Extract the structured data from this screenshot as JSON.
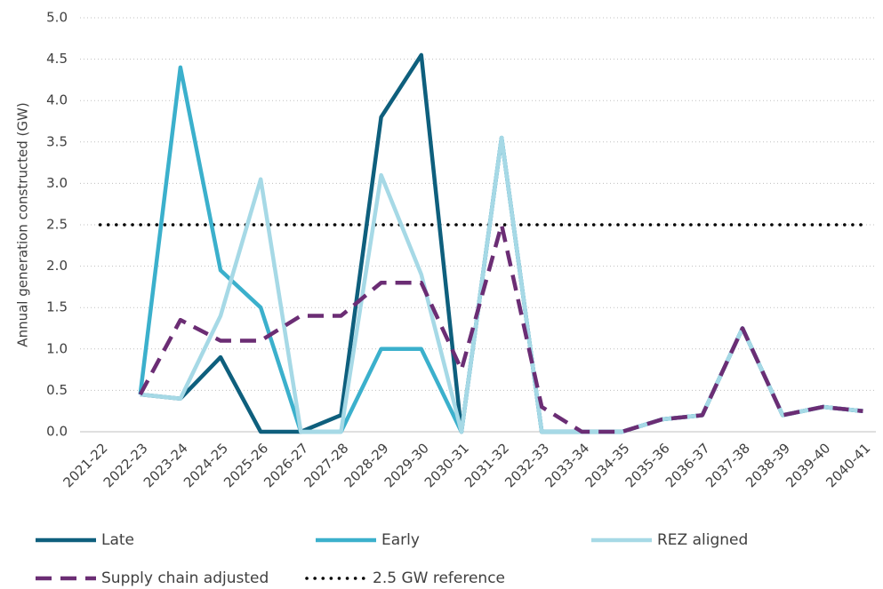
{
  "chart_data": {
    "type": "line",
    "y_label": "Annual generation constructed (GW)",
    "categories": [
      "2021-22",
      "2022-23",
      "2023-24",
      "2024-25",
      "2025-26",
      "2026-27",
      "2027-28",
      "2028-29",
      "2029-30",
      "2030-31",
      "2031-32",
      "2032-33",
      "2033-34",
      "2034-35",
      "2035-36",
      "2036-37",
      "2037-38",
      "2038-39",
      "2039-40",
      "2040-41"
    ],
    "series": [
      {
        "name": "Late",
        "color": "#0e5f7d",
        "style": "solid",
        "values": [
          null,
          0.45,
          0.4,
          0.9,
          0,
          0,
          0.2,
          3.8,
          4.55,
          0,
          3.55,
          0,
          0,
          0,
          0.15,
          0.2,
          1.25,
          0.2,
          0.3,
          0.25
        ]
      },
      {
        "name": "Early",
        "color": "#3bb0cc",
        "style": "solid",
        "values": [
          null,
          0.45,
          4.4,
          1.95,
          1.5,
          0,
          0,
          1.0,
          1.0,
          0,
          3.55,
          0,
          0,
          0,
          0.15,
          0.2,
          1.25,
          0.2,
          0.3,
          0.25
        ]
      },
      {
        "name": "REZ aligned",
        "color": "#a6d9e6",
        "style": "solid",
        "values": [
          null,
          0.45,
          0.4,
          1.4,
          3.05,
          0,
          0,
          3.1,
          1.9,
          0,
          3.55,
          0,
          0,
          0,
          0.15,
          0.2,
          1.25,
          0.2,
          0.3,
          0.25
        ]
      },
      {
        "name": "Supply chain adjusted",
        "color": "#6b2d74",
        "style": "dashed",
        "values": [
          null,
          0.45,
          1.35,
          1.1,
          1.1,
          1.4,
          1.4,
          1.8,
          1.8,
          0.75,
          2.5,
          0.3,
          0,
          0,
          0.15,
          0.2,
          1.25,
          0.2,
          0.3,
          0.25
        ]
      },
      {
        "name": "2.5 GW reference",
        "color": "#000000",
        "style": "dotted",
        "values": [
          2.5,
          2.5,
          2.5,
          2.5,
          2.5,
          2.5,
          2.5,
          2.5,
          2.5,
          2.5,
          2.5,
          2.5,
          2.5,
          2.5,
          2.5,
          2.5,
          2.5,
          2.5,
          2.5,
          2.5
        ]
      }
    ],
    "ylim": [
      0,
      5
    ],
    "yticks": [
      {
        "value": 0,
        "label": "0.0"
      },
      {
        "value": 0.5,
        "label": "0.5"
      },
      {
        "value": 1,
        "label": "1.0"
      },
      {
        "value": 1.5,
        "label": "1.5"
      },
      {
        "value": 2,
        "label": "2.0"
      },
      {
        "value": 2.5,
        "label": "2.5"
      },
      {
        "value": 3,
        "label": "3.0"
      },
      {
        "value": 3.5,
        "label": "3.5"
      },
      {
        "value": 4,
        "label": "4.0"
      },
      {
        "value": 4.5,
        "label": "4.5"
      },
      {
        "value": 5,
        "label": "5.0"
      }
    ],
    "grid": true,
    "legend": "bottom"
  }
}
